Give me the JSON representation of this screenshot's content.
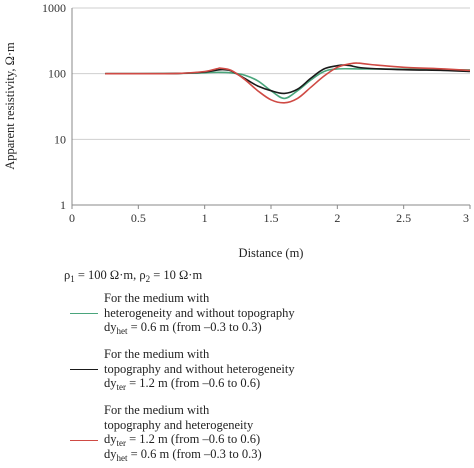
{
  "chart_data": {
    "type": "line",
    "title": "",
    "xlabel": "Distance (m)",
    "ylabel": "Apparent resistivity, Ω·m",
    "xlim": [
      0,
      3
    ],
    "ylim": [
      1,
      1000
    ],
    "yscale": "log",
    "grid": "horizontal",
    "x_ticks": [
      "0",
      "0.5",
      "1",
      "1.5",
      "2",
      "2.5",
      "3"
    ],
    "x_tick_values": [
      0,
      0.5,
      1,
      1.5,
      2,
      2.5,
      3
    ],
    "y_ticks": [
      "1",
      "10",
      "100",
      "1000"
    ],
    "y_tick_values": [
      1,
      10,
      100,
      1000
    ],
    "series": [
      {
        "color": "#4aa57c",
        "x": [
          0.25,
          0.5,
          0.8,
          1.0,
          1.1,
          1.2,
          1.3,
          1.4,
          1.5,
          1.6,
          1.7,
          1.8,
          1.9,
          2.0,
          2.2,
          2.5,
          2.8,
          3.0
        ],
        "y": [
          100,
          100,
          101,
          103,
          105,
          103,
          95,
          78,
          55,
          42,
          55,
          80,
          108,
          118,
          118,
          117,
          115,
          114
        ]
      },
      {
        "color": "#1a1a1a",
        "x": [
          0.25,
          0.5,
          0.8,
          1.0,
          1.1,
          1.15,
          1.2,
          1.3,
          1.4,
          1.5,
          1.6,
          1.7,
          1.8,
          1.9,
          2.0,
          2.05,
          2.1,
          2.2,
          2.5,
          2.8,
          3.0
        ],
        "y": [
          100,
          100,
          101,
          106,
          114,
          115,
          110,
          85,
          65,
          55,
          50,
          58,
          85,
          118,
          132,
          135,
          132,
          122,
          115,
          112,
          108
        ]
      },
      {
        "color": "#cf4a44",
        "x": [
          0.25,
          0.5,
          0.8,
          1.0,
          1.1,
          1.12,
          1.2,
          1.3,
          1.4,
          1.5,
          1.6,
          1.7,
          1.8,
          1.9,
          2.0,
          2.1,
          2.15,
          2.25,
          2.5,
          2.8,
          3.0
        ],
        "y": [
          100,
          100,
          101,
          108,
          120,
          121,
          112,
          82,
          55,
          40,
          36,
          42,
          62,
          92,
          125,
          142,
          145,
          138,
          125,
          118,
          112
        ]
      }
    ]
  },
  "legend": {
    "params": "ρ1 = 100 Ω·m, ρ2 = 10 Ω·m",
    "items": [
      {
        "color": "#4aa57c",
        "lines": [
          "For the medium with",
          "heterogeneity and without topography",
          "dyhet = 0.6 m (from –0.3 to 0.3)"
        ]
      },
      {
        "color": "#1a1a1a",
        "lines": [
          "For the medium with",
          "topography and without heterogeneity",
          "dyter = 1.2 m (from –0.6 to 0.6)"
        ]
      },
      {
        "color": "#cf4a44",
        "lines": [
          "For the medium with",
          "topography and heterogeneity",
          "dyter = 1.2 m (from –0.6 to 0.6)",
          "dyhet = 0.6 m (from –0.3 to 0.3)"
        ]
      }
    ]
  }
}
